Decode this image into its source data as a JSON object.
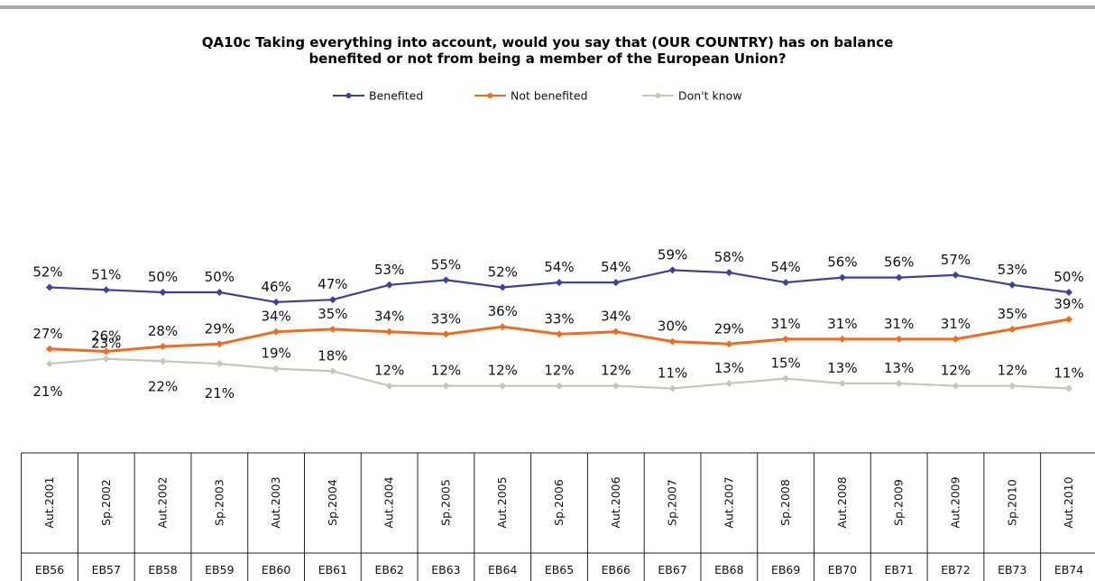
{
  "header": {
    "title_line1": "QA10c Taking everything into account, would you say that (OUR COUNTRY) has on balance",
    "title_line2": "benefited or not from being a member of the European Union?"
  },
  "chart_data": {
    "type": "line",
    "title": "QA10c Taking everything into account, would you say that (OUR COUNTRY) has on balance benefited or not from being a member of the European Union?",
    "legend_position": "top",
    "value_suffix": "%",
    "ylim": [
      0,
      100
    ],
    "grid": false,
    "categories": [
      "Aut.2001",
      "Sp.2002",
      "Aut.2002",
      "Sp.2003",
      "Aut.2003",
      "Sp.2004",
      "Aut.2004",
      "Sp.2005",
      "Aut.2005",
      "Sp.2006",
      "Aut.2006",
      "Sp.2007",
      "Aut.2007",
      "Sp.2008",
      "Aut.2008",
      "Sp.2009",
      "Aut.2009",
      "Sp.2010",
      "Aut.2010"
    ],
    "waves": [
      "EB56",
      "EB57",
      "EB58",
      "EB59",
      "EB60",
      "EB61",
      "EB62",
      "EB63",
      "EB64",
      "EB65",
      "EB66",
      "EB67",
      "EB68",
      "EB69",
      "EB70",
      "EB71",
      "EB72",
      "EB73",
      "EB74"
    ],
    "series": [
      {
        "name": "Benefited",
        "color": "#3f3f9e",
        "values": [
          52,
          51,
          50,
          50,
          46,
          47,
          53,
          55,
          52,
          54,
          54,
          59,
          58,
          54,
          56,
          56,
          57,
          53,
          50
        ]
      },
      {
        "name": "Not benefited",
        "color": "#f26b1d",
        "values": [
          27,
          26,
          28,
          29,
          34,
          35,
          34,
          33,
          36,
          33,
          34,
          30,
          29,
          31,
          31,
          31,
          31,
          35,
          39
        ]
      },
      {
        "name": "Don't know",
        "color": "#c5c7b8",
        "values": [
          21,
          23,
          22,
          21,
          19,
          18,
          12,
          12,
          12,
          12,
          12,
          11,
          13,
          15,
          13,
          13,
          12,
          12,
          11
        ]
      }
    ]
  }
}
